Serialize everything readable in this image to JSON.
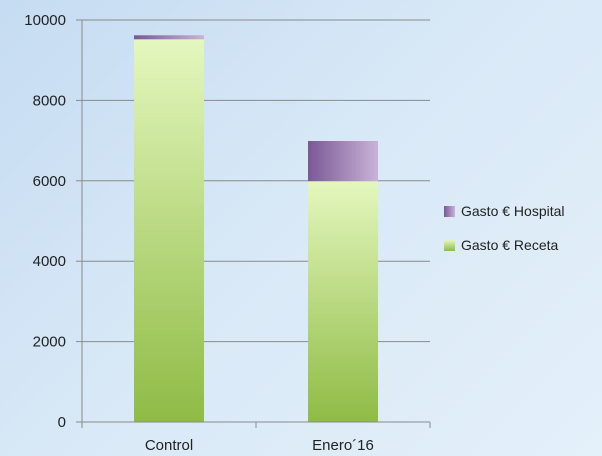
{
  "chart_data": {
    "type": "bar",
    "stacked": true,
    "categories": [
      "Control",
      "Enero´16"
    ],
    "series": [
      {
        "name": "Gasto € Receta",
        "values": [
          9520,
          5990
        ],
        "color": "#9cc653"
      },
      {
        "name": "Gasto € Hospital",
        "values": [
          100,
          1000
        ],
        "color": "#8e6aa6"
      }
    ],
    "ylim": [
      0,
      10000
    ],
    "yticks": [
      0,
      2000,
      4000,
      6000,
      8000,
      10000
    ],
    "grid": true,
    "legend_position": "right"
  }
}
